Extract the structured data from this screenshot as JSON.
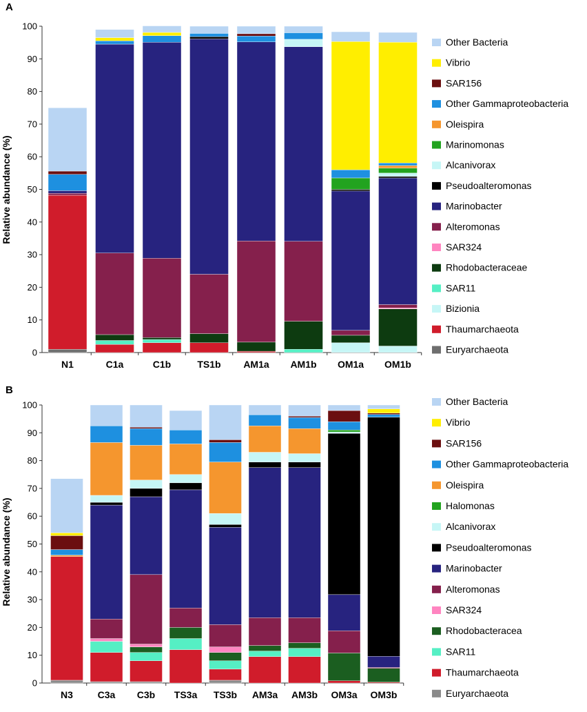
{
  "chart_data": [
    {
      "type": "bar",
      "stacked": true,
      "panel_label": "A",
      "ylabel": "Relative abundance (%)",
      "ylim": [
        0,
        100
      ],
      "yticks": [
        0,
        10,
        20,
        30,
        40,
        50,
        60,
        70,
        80,
        90,
        100
      ],
      "categories": [
        "N1",
        "C1a",
        "C1b",
        "TS1b",
        "AM1a",
        "AM1b",
        "OM1a",
        "OM1b"
      ],
      "series": [
        {
          "name": "Euryarchaeota",
          "color": "#6e6e6e",
          "values": [
            1,
            0,
            0,
            0,
            0,
            0,
            0,
            0
          ]
        },
        {
          "name": "Thaumarchaeota",
          "color": "#d01c2b",
          "values": [
            47.2,
            2.5,
            3,
            3,
            0.4,
            0,
            0,
            0
          ]
        },
        {
          "name": "Bizionia",
          "color": "#c6f6f6",
          "values": [
            0,
            0,
            0,
            0,
            0,
            0,
            3,
            2
          ]
        },
        {
          "name": "SAR11",
          "color": "#55efc4",
          "values": [
            0,
            1.2,
            1,
            0,
            0,
            1,
            0,
            0
          ]
        },
        {
          "name": "Rhodobacteraceae",
          "color": "#0d3b10",
          "values": [
            0,
            1.8,
            0.6,
            2.8,
            2.8,
            8.6,
            2.3,
            11.4
          ]
        },
        {
          "name": "SAR324",
          "color": "#ff85c0",
          "values": [
            0,
            0,
            0,
            0,
            0,
            0,
            0,
            0.3
          ]
        },
        {
          "name": "Alteromonas",
          "color": "#85204c",
          "values": [
            0.6,
            25,
            24.3,
            18.2,
            31,
            24.5,
            1.5,
            1
          ]
        },
        {
          "name": "Marinobacter",
          "color": "#27237f",
          "values": [
            0.8,
            64,
            66.2,
            72.1,
            61,
            59.6,
            42.7,
            38.8
          ]
        },
        {
          "name": "Pseudoalteromonas",
          "color": "#000000",
          "values": [
            0,
            0,
            0,
            0.7,
            0,
            0,
            0.5,
            0.5
          ]
        },
        {
          "name": "Alcanivorax",
          "color": "#c6f6f6",
          "values": [
            0,
            0,
            0,
            0,
            0,
            2.3,
            0,
            1
          ]
        },
        {
          "name": "Marinomonas",
          "color": "#22a31f",
          "values": [
            0,
            0,
            0,
            0,
            0,
            0,
            3.5,
            1.5
          ]
        },
        {
          "name": "Oleispira",
          "color": "#f5962e",
          "values": [
            0,
            0,
            0,
            0,
            0,
            0,
            0,
            0.8
          ]
        },
        {
          "name": "Other Gammaproteobacteria",
          "color": "#1e90e0",
          "values": [
            5,
            1,
            2,
            1,
            1.8,
            2,
            2.5,
            0.8
          ]
        },
        {
          "name": "SAR156",
          "color": "#6b0f10",
          "values": [
            1,
            0,
            0,
            0,
            0.7,
            0,
            0,
            0
          ]
        },
        {
          "name": "Vibrio",
          "color": "#ffee00",
          "values": [
            0,
            1,
            1,
            0,
            0,
            0,
            39.3,
            37
          ]
        },
        {
          "name": "Other Bacteria",
          "color": "#b9d5f3",
          "values": [
            19.4,
            2.5,
            2,
            2.2,
            2.3,
            2,
            3,
            3
          ]
        }
      ],
      "legend_order": [
        "Other Bacteria",
        "Vibrio",
        "SAR156",
        "Other Gammaproteobacteria",
        "Oleispira",
        "Marinomonas",
        "Alcanivorax",
        "Pseudoalteromonas",
        "Marinobacter",
        "Alteromonas",
        "SAR324",
        "Rhodobacteraceae",
        "SAR11",
        "Bizionia",
        "Thaumarchaeota",
        "Euryarchaeota"
      ],
      "legend_position": "right"
    },
    {
      "type": "bar",
      "stacked": true,
      "panel_label": "B",
      "ylabel": "Relative abundance (%)",
      "ylim": [
        0,
        100
      ],
      "yticks": [
        0,
        10,
        20,
        30,
        40,
        50,
        60,
        70,
        80,
        90,
        100
      ],
      "categories": [
        "N3",
        "C3a",
        "C3b",
        "TS3a",
        "TS3b",
        "AM3a",
        "AM3b",
        "OM3a",
        "OM3b"
      ],
      "series": [
        {
          "name": "Euryarchaeota",
          "color": "#8a8a8a",
          "values": [
            1,
            0.5,
            0.5,
            0,
            1,
            0,
            0,
            0,
            0
          ]
        },
        {
          "name": "Thaumarchaeota",
          "color": "#d01c2b",
          "values": [
            44.5,
            10.5,
            7.5,
            12,
            4,
            9.5,
            9.5,
            0.8,
            0.3
          ]
        },
        {
          "name": "SAR11",
          "color": "#55efc4",
          "values": [
            0,
            4,
            3,
            4,
            3,
            2,
            3,
            0,
            0
          ]
        },
        {
          "name": "Rhodobacteracea",
          "color": "#1b5e20",
          "values": [
            0,
            0,
            2,
            4,
            3,
            2,
            2,
            10,
            5
          ]
        },
        {
          "name": "SAR324",
          "color": "#ff85c0",
          "values": [
            0,
            1,
            1,
            0,
            2,
            0,
            0,
            0,
            0
          ]
        },
        {
          "name": "Alteromonas",
          "color": "#85204c",
          "values": [
            0,
            7,
            25,
            7,
            8,
            10,
            9,
            8,
            0.3
          ]
        },
        {
          "name": "Marinobacter",
          "color": "#27237f",
          "values": [
            0,
            41,
            28,
            42.5,
            35,
            54,
            54,
            13,
            4
          ]
        },
        {
          "name": "Pseudoalteromonas",
          "color": "#000000",
          "values": [
            0,
            1,
            3,
            2.5,
            1,
            2,
            2,
            58,
            86
          ]
        },
        {
          "name": "Alcanivorax",
          "color": "#c6f6f6",
          "values": [
            0,
            2.5,
            3,
            3,
            4,
            3.5,
            3,
            0.5,
            0
          ]
        },
        {
          "name": "Halomonas",
          "color": "#22a31f",
          "values": [
            0,
            0,
            0,
            0,
            0,
            0,
            0,
            0.7,
            0
          ]
        },
        {
          "name": "Oleispira",
          "color": "#f5962e",
          "values": [
            0.5,
            19,
            12.5,
            11,
            18.5,
            9.5,
            9,
            0,
            0
          ]
        },
        {
          "name": "Other Gammaproteobacteria",
          "color": "#1e90e0",
          "values": [
            2,
            6,
            6,
            5,
            7,
            4,
            4,
            3,
            1
          ]
        },
        {
          "name": "SAR156",
          "color": "#6b0f10",
          "values": [
            5,
            0,
            0.5,
            0,
            1,
            0,
            0.5,
            4,
            0.5
          ]
        },
        {
          "name": "Vibrio",
          "color": "#ffee00",
          "values": [
            1,
            0,
            0,
            0,
            0,
            0,
            0,
            0,
            1.5
          ]
        },
        {
          "name": "Other Bacteria",
          "color": "#b9d5f3",
          "values": [
            19.5,
            7.5,
            8,
            7,
            12.5,
            3.5,
            4,
            2,
            1.4
          ]
        }
      ],
      "legend_order": [
        "Other Bacteria",
        "Vibrio",
        "SAR156",
        "Other Gammaproteobacteria",
        "Oleispira",
        "Halomonas",
        "Alcanivorax",
        "Pseudoalteromonas",
        "Marinobacter",
        "Alteromonas",
        "SAR324",
        "Rhodobacteracea",
        "SAR11",
        "Thaumarchaeota",
        "Euryarchaeota"
      ],
      "legend_position": "right"
    }
  ]
}
